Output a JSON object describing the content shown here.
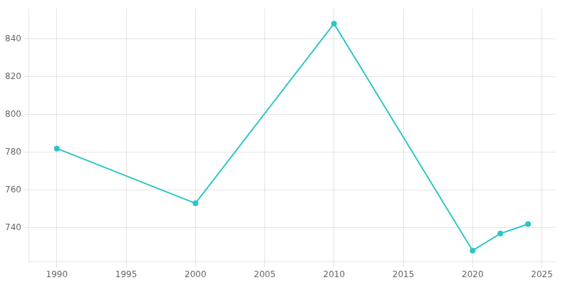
{
  "chart_data": {
    "type": "line",
    "x": [
      1990,
      2000,
      2010,
      2020,
      2022,
      2024
    ],
    "values": [
      782,
      753,
      848,
      728,
      737,
      742
    ],
    "color": "#2dc5c5",
    "marker": "circle",
    "xlim": [
      1988,
      2026
    ],
    "ylim": [
      722,
      856
    ],
    "xticks": [
      1990,
      1995,
      2000,
      2005,
      2010,
      2015,
      2020,
      2025
    ],
    "yticks": [
      740,
      760,
      780,
      800,
      820,
      840
    ],
    "grid": true
  }
}
